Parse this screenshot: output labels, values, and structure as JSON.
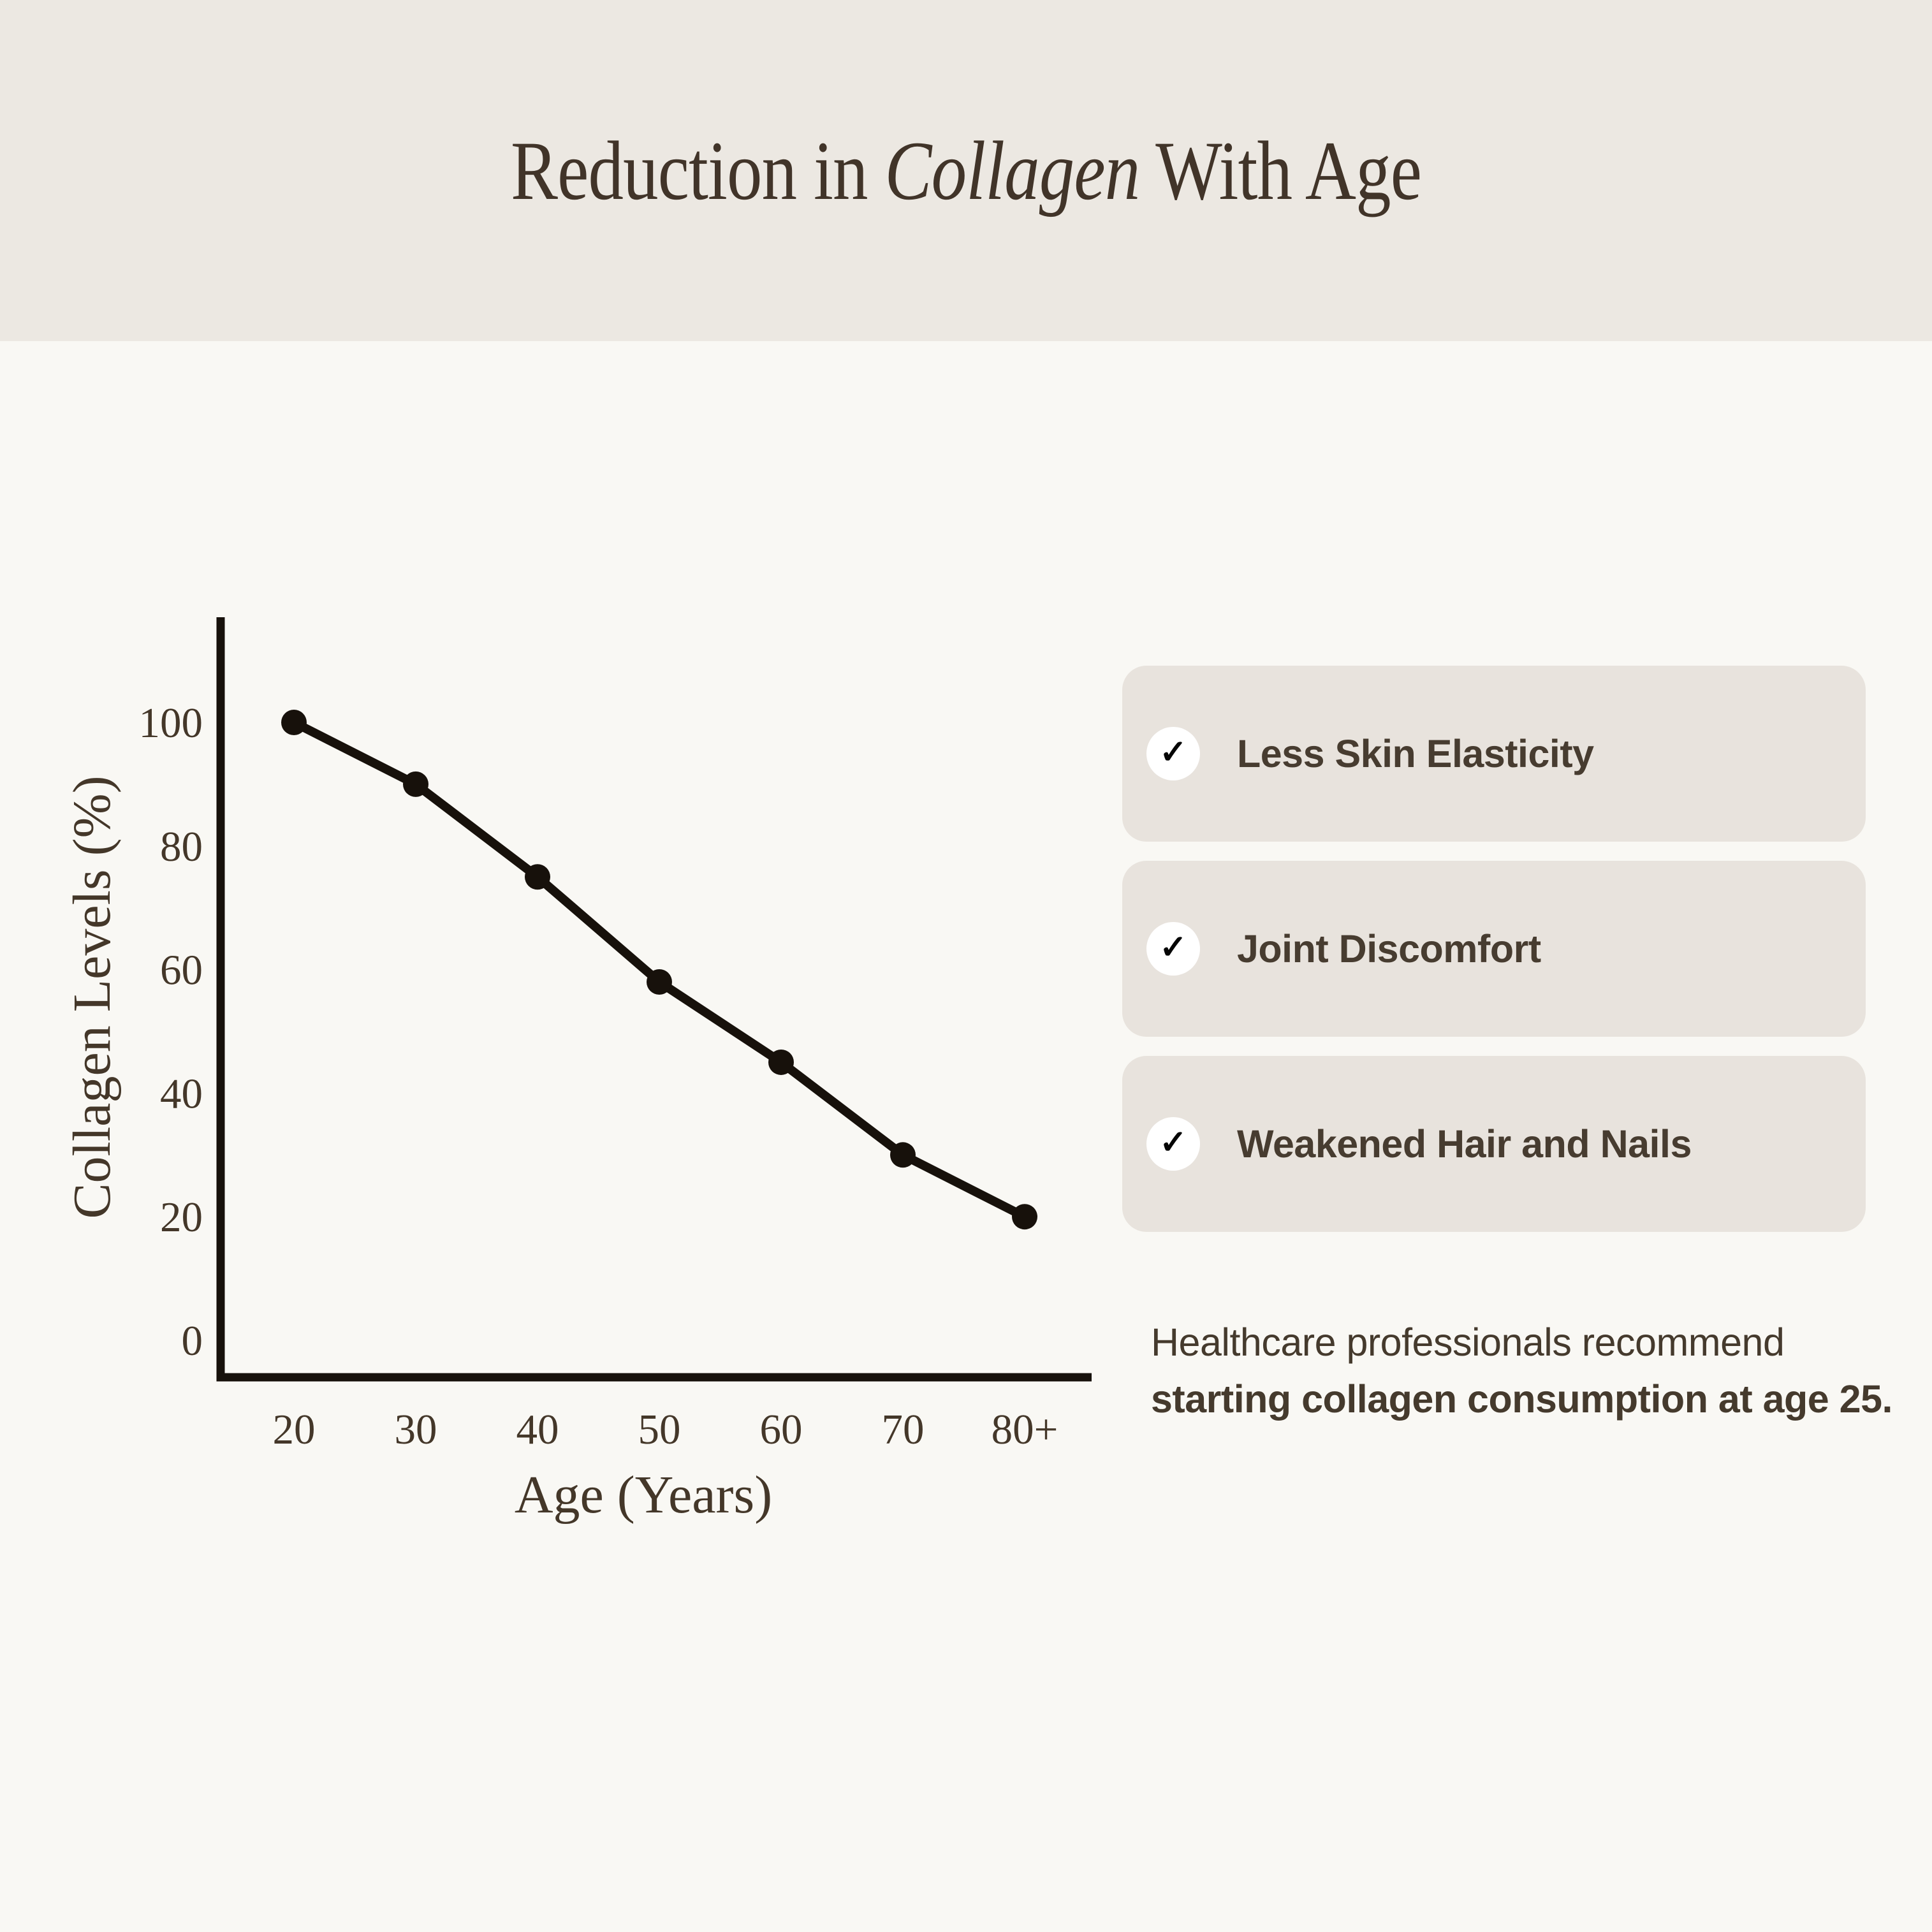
{
  "title": {
    "prefix": "Reduction in ",
    "italic": "Collagen",
    "suffix": " With Age"
  },
  "chart_data": {
    "type": "line",
    "title": "Reduction in Collagen With Age",
    "categories": [
      "20",
      "30",
      "40",
      "50",
      "60",
      "70",
      "80+"
    ],
    "values": [
      100,
      90,
      75,
      58,
      45,
      30,
      20
    ],
    "series": [
      {
        "name": "Collagen Levels (%)",
        "values": [
          100,
          90,
          75,
          58,
          45,
          30,
          20
        ]
      }
    ],
    "xlabel": "Age (Years)",
    "ylabel": "Collagen Levels (%)",
    "y_ticks": [
      0,
      20,
      40,
      60,
      80,
      100
    ],
    "ylim": [
      0,
      116
    ],
    "grid": false,
    "legend": "none",
    "line_color": "#17110b",
    "marker": "circle"
  },
  "checklist": {
    "items": [
      {
        "label": "Less Skin Elasticity"
      },
      {
        "label": "Joint Discomfort"
      },
      {
        "label": "Weakened Hair and Nails"
      }
    ]
  },
  "note": {
    "line1": "Healthcare professionals recommend",
    "line2": "starting collagen consumption at age 25."
  },
  "icons": {
    "check": "✓"
  },
  "colors": {
    "header_band": "#ece8e2",
    "background": "#f9f8f4",
    "card_background": "#e8e3dd",
    "text_brown": "#453a2d",
    "chart_ink": "#17110b"
  }
}
